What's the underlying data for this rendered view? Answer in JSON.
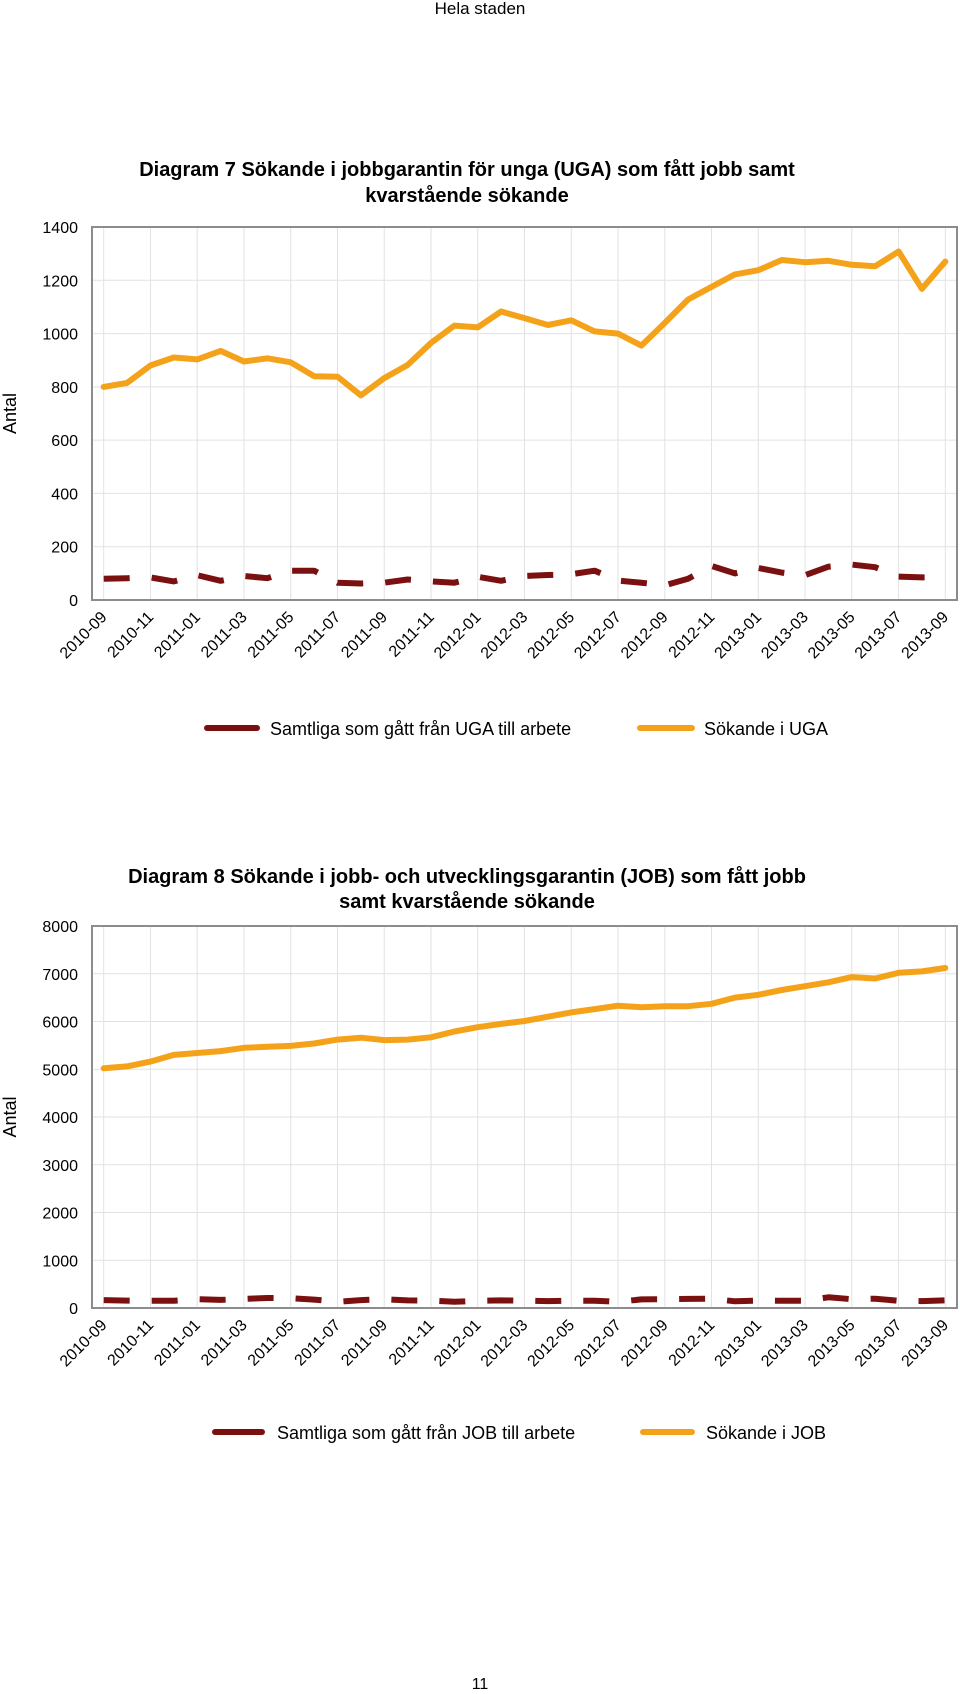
{
  "page": {
    "header": "Hela staden",
    "page_number": "11"
  },
  "chart_data": [
    {
      "type": "line",
      "title_lines": [
        "Diagram 7 Sökande i jobbgarantin för unga (UGA) som fått jobb samt",
        "kvarstående sökande"
      ],
      "ylabel": "Antal",
      "ylim": [
        0,
        1400
      ],
      "yticks": [
        0,
        200,
        400,
        600,
        800,
        1000,
        1200,
        1400
      ],
      "x_labels": [
        "2010-09",
        "2010-11",
        "2011-01",
        "2011-03",
        "2011-05",
        "2011-07",
        "2011-09",
        "2011-11",
        "2012-01",
        "2012-03",
        "2012-05",
        "2012-07",
        "2012-09",
        "2012-11",
        "2013-01",
        "2013-03",
        "2013-05",
        "2013-07",
        "2013-09"
      ],
      "grid": true,
      "legend_position": "bottom",
      "series": [
        {
          "name": "Samtliga som gått från UGA till arbete",
          "style": "dashed",
          "color": "#7b1010",
          "values": [
            80,
            82,
            85,
            70,
            93,
            72,
            90,
            82,
            110,
            110,
            65,
            62,
            65,
            77,
            70,
            65,
            87,
            72,
            90,
            94,
            97,
            110,
            73,
            65,
            55,
            80,
            128,
            100,
            120,
            103,
            93,
            125,
            133,
            123,
            88,
            85,
            85
          ]
        },
        {
          "name": "Sökande i UGA",
          "style": "solid",
          "color": "#f5a21b",
          "values": [
            800,
            815,
            880,
            910,
            903,
            935,
            895,
            907,
            892,
            840,
            838,
            768,
            833,
            882,
            965,
            1030,
            1023,
            1083,
            1058,
            1032,
            1050,
            1008,
            1000,
            955,
            1040,
            1128,
            1175,
            1222,
            1238,
            1276,
            1268,
            1273,
            1258,
            1253,
            1308,
            1168,
            1270
          ]
        }
      ]
    },
    {
      "type": "line",
      "title_lines": [
        "Diagram 8 Sökande i jobb- och utvecklingsgarantin (JOB) som fått jobb",
        "samt kvarstående sökande"
      ],
      "ylabel": "Antal",
      "ylim": [
        0,
        8000
      ],
      "yticks": [
        0,
        1000,
        2000,
        3000,
        4000,
        5000,
        6000,
        7000,
        8000
      ],
      "x_labels": [
        "2010-09",
        "2010-11",
        "2011-01",
        "2011-03",
        "2011-05",
        "2011-07",
        "2011-09",
        "2011-11",
        "2012-01",
        "2012-03",
        "2012-05",
        "2012-07",
        "2012-09",
        "2012-11",
        "2013-01",
        "2013-03",
        "2013-05",
        "2013-07",
        "2013-09"
      ],
      "grid": true,
      "legend_position": "bottom",
      "series": [
        {
          "name": "Samtliga som gått från JOB till arbete",
          "style": "dashed",
          "color": "#7b1010",
          "values": [
            165,
            155,
            150,
            150,
            185,
            170,
            190,
            210,
            205,
            175,
            130,
            165,
            185,
            160,
            155,
            130,
            150,
            160,
            155,
            145,
            155,
            150,
            130,
            180,
            185,
            190,
            195,
            140,
            155,
            150,
            150,
            225,
            185,
            195,
            150,
            145,
            160
          ]
        },
        {
          "name": "Sökande i JOB",
          "style": "solid",
          "color": "#f5a21b",
          "values": [
            5020,
            5060,
            5160,
            5300,
            5340,
            5380,
            5450,
            5470,
            5490,
            5540,
            5620,
            5660,
            5610,
            5620,
            5670,
            5790,
            5880,
            5950,
            6010,
            6100,
            6190,
            6260,
            6330,
            6300,
            6320,
            6320,
            6370,
            6500,
            6560,
            6660,
            6740,
            6820,
            6930,
            6900,
            7020,
            7050,
            7120
          ]
        }
      ]
    }
  ]
}
